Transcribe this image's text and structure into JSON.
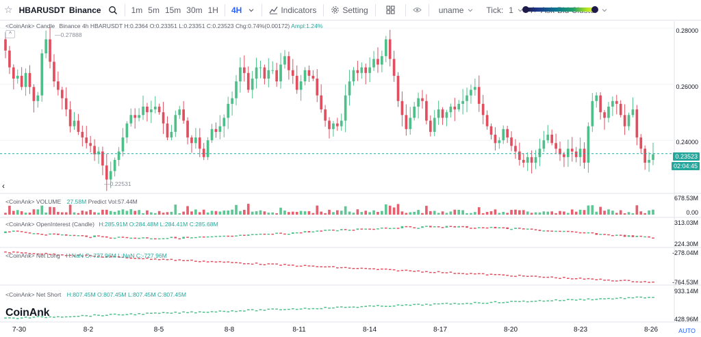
{
  "toolbar": {
    "symbol": "HBARUSDT",
    "exchange": "Binance",
    "intervals": [
      "1m",
      "5m",
      "15m",
      "30m",
      "1H",
      "4H"
    ],
    "active_interval": "4H",
    "indicators_label": "Indicators",
    "setting_label": "Setting",
    "uname_label": "uname",
    "tick_label": "Tick:",
    "tick_value": "1",
    "cluster_label": "Ask-Bid Cluster"
  },
  "legend": {
    "main": {
      "name": "<CoinAnk> Candle",
      "source": "Binance 4h HBARUSDT",
      "h": "H:0.2364",
      "o": "O:0.23351",
      "l": "L:0.23351",
      "c": "C:0.23523",
      "chg": "Chg:0.74%(0.00172)",
      "ampl": "Ampl:1.24%"
    },
    "volume": {
      "name": "<CoinAnk> VOLUME",
      "value": "27.58M",
      "predict": "Predict Vol:57.44M"
    },
    "oi": {
      "name": "<CoinAnk> OpenInterest (Candle)",
      "h": "H:285.91M",
      "o": "O:284.48M",
      "l": "L:284.41M",
      "c": "C:285.68M"
    },
    "netlong": {
      "name": "<CoinAnk> Net Long",
      "h": "H:NaN",
      "o": "O:-727.96M",
      "l": "L:NaN",
      "c": "C:-727.96M"
    },
    "netshort": {
      "name": "<CoinAnk> Net Short",
      "h": "H:807.45M",
      "o": "O:807.45M",
      "l": "L:807.45M",
      "c": "C:807.45M"
    }
  },
  "price_axis": [
    "0.28000",
    "0.26000",
    "0.24000"
  ],
  "last_price": "0.23523",
  "countdown": "02:04:45",
  "high_marker": "0.27888",
  "low_marker": "0.22531",
  "volume_axis": [
    "678.53M",
    "0.00"
  ],
  "oi_axis": [
    "313.03M",
    "224.30M"
  ],
  "netlong_axis": [
    "-278.04M",
    "-764.53M"
  ],
  "netshort_axis": [
    "933.14M",
    "428.96M"
  ],
  "x_labels": [
    "7-30",
    "8-2",
    "8-5",
    "8-8",
    "8-11",
    "8-14",
    "8-17",
    "8-20",
    "8-23",
    "8-26"
  ],
  "auto_label": "AUTO",
  "brand": "CoinAnk",
  "colors": {
    "up": "#4fbf8a",
    "down": "#e04f5f",
    "accent": "#2962ff"
  },
  "chart_data": {
    "type": "candlestick",
    "symbol": "HBARUSDT",
    "interval": "4h",
    "ylim": [
      0.2225,
      0.2815
    ],
    "last": 0.23523,
    "high": 0.27888,
    "low": 0.22531,
    "closes": [
      0.272,
      0.266,
      0.262,
      0.263,
      0.259,
      0.264,
      0.259,
      0.254,
      0.256,
      0.271,
      0.276,
      0.268,
      0.261,
      0.258,
      0.255,
      0.251,
      0.245,
      0.247,
      0.243,
      0.241,
      0.239,
      0.238,
      0.235,
      0.236,
      0.231,
      0.226,
      0.229,
      0.233,
      0.236,
      0.241,
      0.246,
      0.249,
      0.248,
      0.249,
      0.252,
      0.25,
      0.251,
      0.252,
      0.25,
      0.246,
      0.241,
      0.243,
      0.249,
      0.251,
      0.247,
      0.241,
      0.239,
      0.241,
      0.237,
      0.234,
      0.24,
      0.244,
      0.243,
      0.245,
      0.248,
      0.253,
      0.255,
      0.261,
      0.266,
      0.264,
      0.258,
      0.262,
      0.266,
      0.266,
      0.262,
      0.265,
      0.265,
      0.261,
      0.267,
      0.27,
      0.265,
      0.263,
      0.258,
      0.261,
      0.265,
      0.263,
      0.262,
      0.256,
      0.251,
      0.247,
      0.244,
      0.246,
      0.245,
      0.247,
      0.256,
      0.261,
      0.265,
      0.264,
      0.266,
      0.264,
      0.266,
      0.269,
      0.267,
      0.27,
      0.276,
      0.269,
      0.263,
      0.254,
      0.249,
      0.244,
      0.248,
      0.252,
      0.255,
      0.254,
      0.247,
      0.243,
      0.248,
      0.251,
      0.248,
      0.25,
      0.252,
      0.251,
      0.253,
      0.254,
      0.256,
      0.258,
      0.259,
      0.253,
      0.249,
      0.245,
      0.242,
      0.239,
      0.24,
      0.244,
      0.241,
      0.238,
      0.236,
      0.233,
      0.232,
      0.234,
      0.232,
      0.234,
      0.237,
      0.24,
      0.242,
      0.239,
      0.237,
      0.235,
      0.234,
      0.237,
      0.236,
      0.234,
      0.237,
      0.232,
      0.245,
      0.254,
      0.256,
      0.25,
      0.248,
      0.252,
      0.254,
      0.253,
      0.249,
      0.245,
      0.249,
      0.251,
      0.241,
      0.237,
      0.232,
      0.233,
      0.235
    ]
  }
}
